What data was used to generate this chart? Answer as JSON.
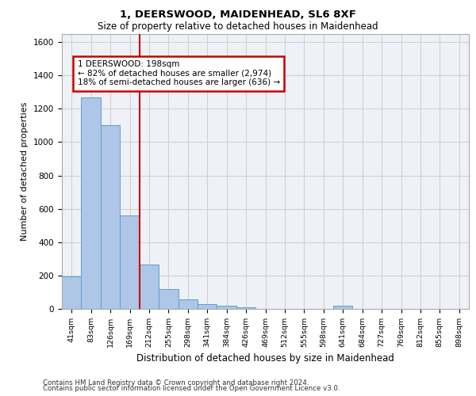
{
  "title1": "1, DEERSWOOD, MAIDENHEAD, SL6 8XF",
  "title2": "Size of property relative to detached houses in Maidenhead",
  "xlabel": "Distribution of detached houses by size in Maidenhead",
  "ylabel": "Number of detached properties",
  "footer1": "Contains HM Land Registry data © Crown copyright and database right 2024.",
  "footer2": "Contains public sector information licensed under the Open Government Licence v3.0.",
  "categories": [
    "41sqm",
    "83sqm",
    "126sqm",
    "169sqm",
    "212sqm",
    "255sqm",
    "298sqm",
    "341sqm",
    "384sqm",
    "426sqm",
    "469sqm",
    "512sqm",
    "555sqm",
    "598sqm",
    "641sqm",
    "684sqm",
    "727sqm",
    "769sqm",
    "812sqm",
    "855sqm",
    "898sqm"
  ],
  "values": [
    197,
    1270,
    1100,
    560,
    265,
    120,
    55,
    30,
    20,
    10,
    0,
    0,
    0,
    0,
    20,
    0,
    0,
    0,
    0,
    0,
    0
  ],
  "bar_color": "#aec6e8",
  "bar_edge_color": "#5a9fd4",
  "vline_x": 4,
  "vline_color": "#cc0000",
  "annotation_text": "1 DEERSWOOD: 198sqm\n← 82% of detached houses are smaller (2,974)\n18% of semi-detached houses are larger (636) →",
  "annotation_box_color": "#ffffff",
  "annotation_box_edge": "#cc0000",
  "ylim": [
    0,
    1650
  ],
  "yticks": [
    0,
    200,
    400,
    600,
    800,
    1000,
    1200,
    1400,
    1600
  ],
  "grid_color": "#d0d0d0",
  "bg_color": "#eef2f8"
}
